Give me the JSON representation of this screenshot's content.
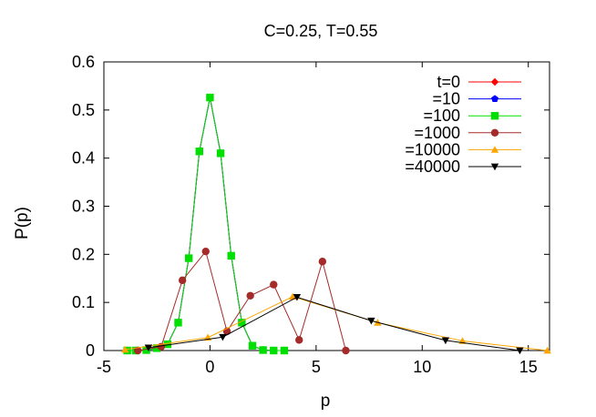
{
  "chart_data": {
    "type": "line",
    "title": "C=0.25, T=0.55",
    "xlabel": "p",
    "ylabel": "P(p)",
    "xlim": [
      -5,
      16
    ],
    "ylim": [
      0,
      0.6
    ],
    "xticks": [
      -5,
      0,
      5,
      10,
      15
    ],
    "yticks": [
      0,
      0.1,
      0.2,
      0.3,
      0.4,
      0.5,
      0.6
    ],
    "xtick_labels": [
      "-5",
      "0",
      "5",
      "10",
      "15"
    ],
    "ytick_labels": [
      "0",
      "0.1",
      "0.2",
      "0.3",
      "0.4",
      "0.5",
      "0.6"
    ],
    "grid": false,
    "legend_position": "top-right",
    "series": [
      {
        "name": "t=0",
        "color": "#ff0000",
        "marker": "diamond",
        "x": [
          -3.9,
          -3.5,
          -3.0,
          -2.5,
          -2.0,
          -1.5,
          -1.0,
          -0.5,
          0.0,
          0.5,
          1.0,
          1.5,
          2.0,
          2.5,
          3.0,
          3.5
        ],
        "y": [
          0.0,
          0.0,
          0.001,
          0.005,
          0.013,
          0.058,
          0.192,
          0.414,
          0.526,
          0.41,
          0.197,
          0.058,
          0.01,
          0.001,
          0.0,
          0.0
        ]
      },
      {
        "name": "=10",
        "color": "#0000ff",
        "marker": "pentagon",
        "x": [
          -3.9,
          -3.5,
          -3.0,
          -2.5,
          -2.0,
          -1.5,
          -1.0,
          -0.5,
          0.0,
          0.5,
          1.0,
          1.5,
          2.0,
          2.5,
          3.0,
          3.5
        ],
        "y": [
          0.0,
          0.0,
          0.001,
          0.005,
          0.013,
          0.058,
          0.192,
          0.414,
          0.526,
          0.41,
          0.197,
          0.058,
          0.01,
          0.001,
          0.0,
          0.0
        ]
      },
      {
        "name": "=100",
        "color": "#00e000",
        "marker": "square",
        "x": [
          -3.9,
          -3.5,
          -3.0,
          -2.5,
          -2.0,
          -1.5,
          -1.0,
          -0.5,
          0.0,
          0.5,
          1.0,
          1.5,
          2.0,
          2.5,
          3.0,
          3.5
        ],
        "y": [
          0.0,
          0.0,
          0.001,
          0.005,
          0.013,
          0.058,
          0.192,
          0.414,
          0.526,
          0.41,
          0.197,
          0.058,
          0.01,
          0.001,
          0.0,
          0.0
        ]
      },
      {
        "name": "=1000",
        "color": "#a52a2a",
        "marker": "circle",
        "x": [
          -3.4,
          -2.3,
          -1.3,
          -0.2,
          0.8,
          1.9,
          3.0,
          4.2,
          5.3,
          6.4
        ],
        "y": [
          0.0,
          0.008,
          0.146,
          0.206,
          0.04,
          0.114,
          0.137,
          0.022,
          0.185,
          0.0
        ]
      },
      {
        "name": "=10000",
        "color": "#ffa500",
        "marker": "triangle-up",
        "x": [
          -4.0,
          -0.1,
          3.9,
          7.9,
          11.9,
          15.9
        ],
        "y": [
          0.002,
          0.027,
          0.112,
          0.058,
          0.02,
          0.0
        ]
      },
      {
        "name": "=40000",
        "color": "#000000",
        "marker": "triangle-down",
        "x": [
          -2.9,
          0.6,
          4.1,
          7.6,
          11.1,
          14.6
        ],
        "y": [
          0.006,
          0.028,
          0.111,
          0.062,
          0.021,
          0.0
        ]
      }
    ]
  }
}
